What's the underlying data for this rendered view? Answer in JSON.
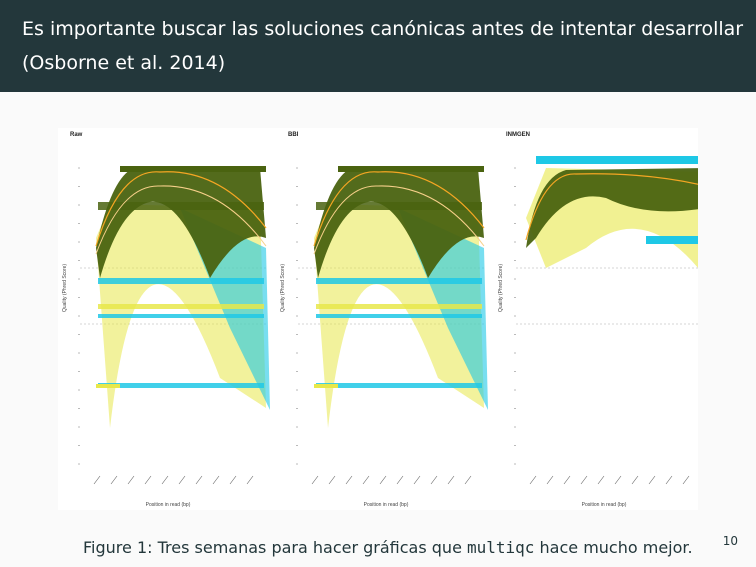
{
  "slide": {
    "title_line1": "Es importante buscar las soluciones canónicas antes de intentar desarrollar",
    "title_line2": "(Osborne et al. 2014)",
    "caption_prefix": "Figure 1:",
    "caption_text_before": " Tres semanas para hacer gráficas que ",
    "caption_code": "multiqc",
    "caption_text_after": " hace mucho mejor.",
    "page_number": "10"
  },
  "colors": {
    "header_bg": "#23373b",
    "dark_green": "#4a6310",
    "cyan": "#1ec8e6",
    "yellow": "#e8e84a",
    "orange_line": "#f5a623"
  },
  "figure": {
    "panels": [
      {
        "title": "Raw",
        "xlabel": "Position in read (bp)",
        "ylabel": "Quality (Phred Score)"
      },
      {
        "title": "BBI",
        "xlabel": "Position in read (bp)",
        "ylabel": "Quality (Phred Score)"
      },
      {
        "title": "INMGEN",
        "xlabel": "Position in read (bp)",
        "ylabel": "Quality (Phred Score)"
      }
    ]
  }
}
